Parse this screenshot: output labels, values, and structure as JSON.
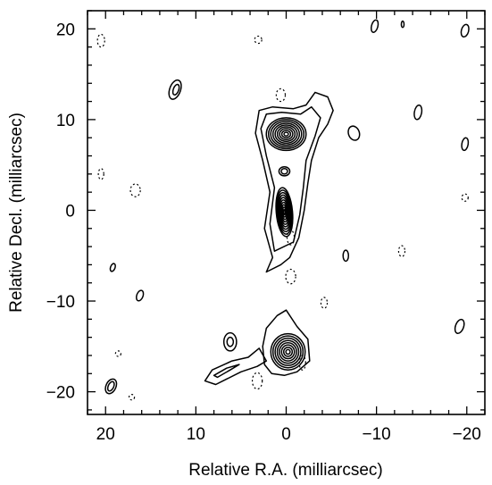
{
  "chart_data": {
    "type": "contour",
    "title": "",
    "xlabel": "Relative R.A. (milliarcsec)",
    "ylabel": "Relative Decl. (milliarcsec)",
    "xlim": [
      22,
      -22
    ],
    "ylim": [
      -22.5,
      22
    ],
    "x_ticks": [
      20,
      10,
      0,
      -10,
      -20
    ],
    "x_tick_labels": [
      "20",
      "10",
      "0",
      "−10",
      "−20"
    ],
    "y_ticks": [
      20,
      10,
      0,
      -10,
      -20
    ],
    "y_tick_labels": [
      "20",
      "10",
      "0",
      "−10",
      "−20"
    ],
    "x_minor_step": 2,
    "y_minor_step": 2,
    "grid": false,
    "legend": "none",
    "components": [
      {
        "name": "core",
        "x": 0.2,
        "y": -0.2,
        "sx": 0.9,
        "sy": 2.7,
        "angle": 5,
        "levels": 10
      },
      {
        "name": "upper-knot",
        "x": 0.0,
        "y": 8.4,
        "sx": 2.2,
        "sy": 1.8,
        "angle": 0,
        "levels": 9
      },
      {
        "name": "southern-component",
        "x": -0.2,
        "y": -15.6,
        "sx": 1.9,
        "sy": 2.0,
        "angle": 0,
        "levels": 8
      },
      {
        "name": "southern-knot",
        "x": 6.2,
        "y": -14.5,
        "sx": 0.7,
        "sy": 1.0,
        "angle": 0,
        "levels": 2
      }
    ]
  }
}
